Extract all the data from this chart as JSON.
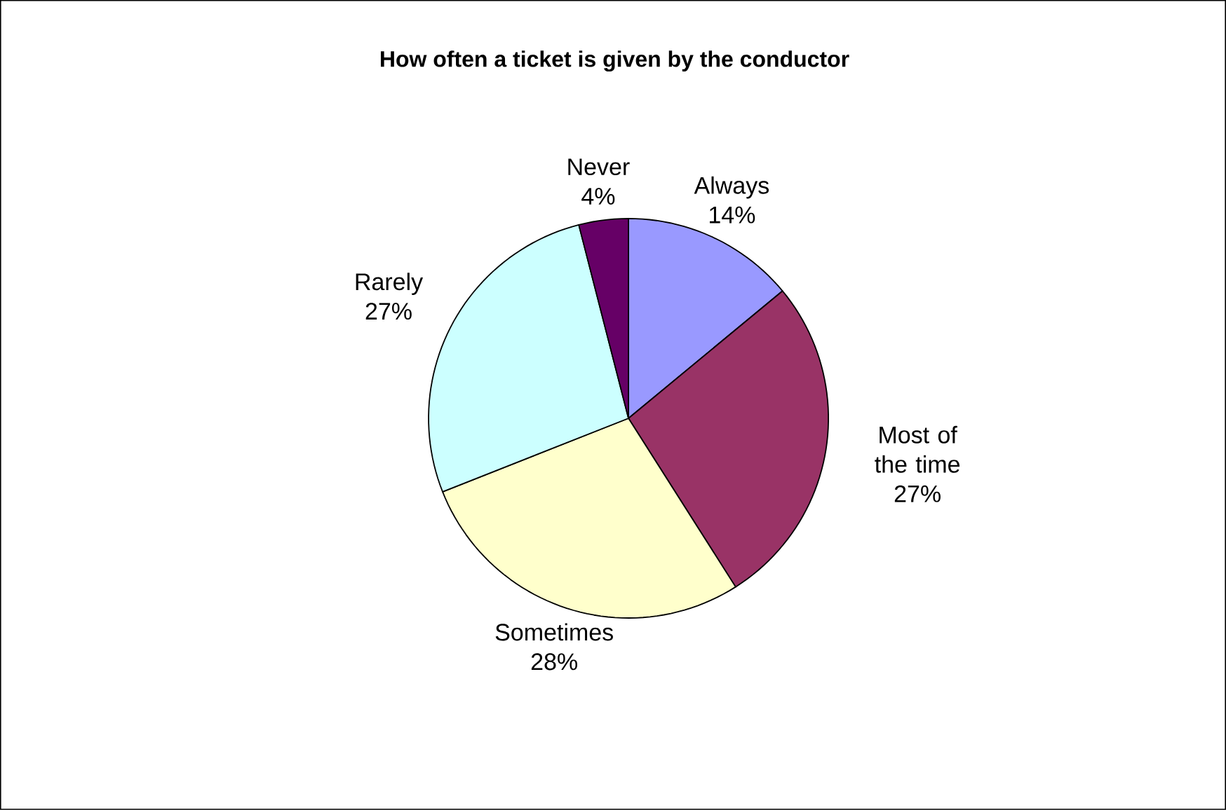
{
  "chart_data": {
    "type": "pie",
    "title": "How often a ticket is given by the conductor",
    "categories": [
      "Always",
      "Most of the time",
      "Sometimes",
      "Rarely",
      "Never"
    ],
    "values": [
      14,
      27,
      28,
      27,
      4
    ],
    "value_labels": [
      "14%",
      "27%",
      "28%",
      "27%",
      "4%"
    ],
    "colors": [
      "#9999ff",
      "#993366",
      "#ffffcc",
      "#ccffff",
      "#660066"
    ]
  }
}
